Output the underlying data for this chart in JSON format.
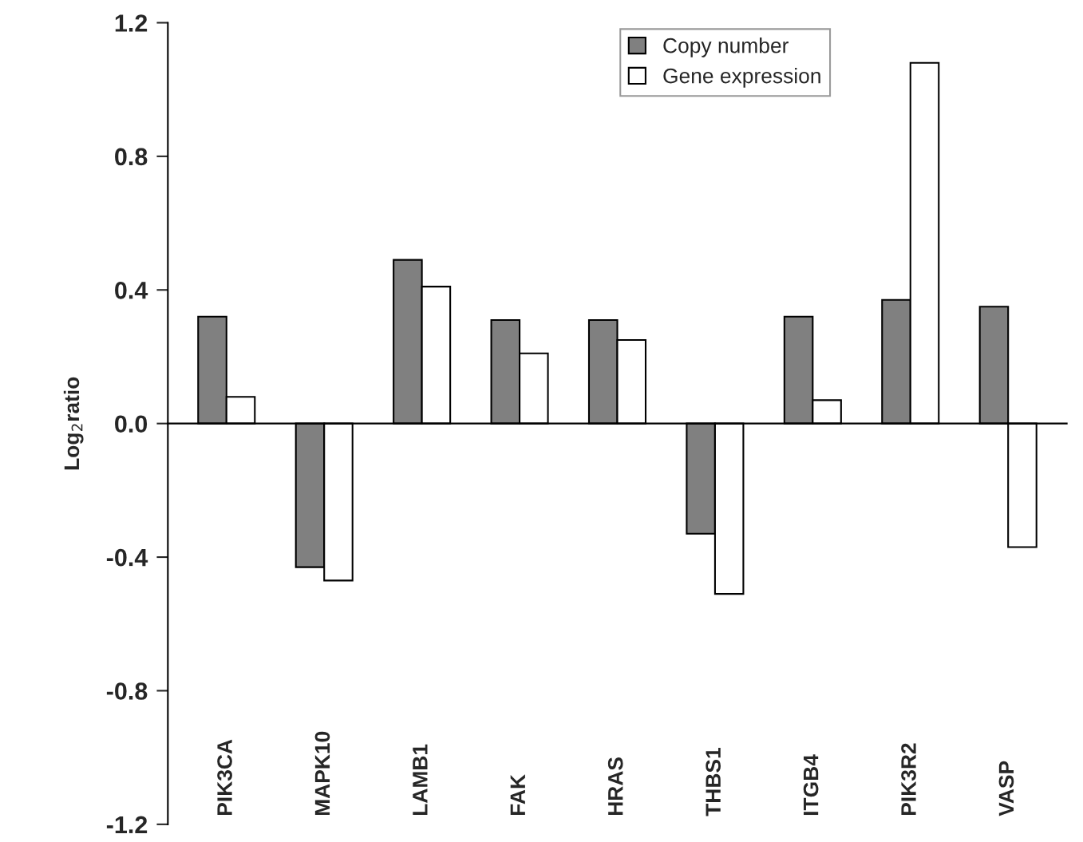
{
  "chart_data": {
    "type": "bar",
    "ylabel": "Log$_{2}$ratio",
    "categories": [
      "PIK3CA",
      "MAPK10",
      "LAMB1",
      "FAK",
      "HRAS",
      "THBS1",
      "ITGB4",
      "PIK3R2",
      "VASP"
    ],
    "series": [
      {
        "name": "Copy number",
        "color": "#808080",
        "values": [
          0.32,
          -0.43,
          0.49,
          0.31,
          0.31,
          -0.33,
          0.32,
          0.37,
          0.35
        ]
      },
      {
        "name": "Gene expression",
        "color": "#ffffff",
        "values": [
          0.08,
          -0.47,
          0.41,
          0.21,
          0.25,
          -0.51,
          0.07,
          1.08,
          -0.37
        ]
      }
    ],
    "ylim": [
      -1.2,
      1.2
    ],
    "yticks": [
      -1.2,
      -0.8,
      -0.4,
      {
        "value": 0,
        "label": "0.0"
      },
      0.4,
      0.8,
      1.2
    ],
    "legend": "top"
  }
}
